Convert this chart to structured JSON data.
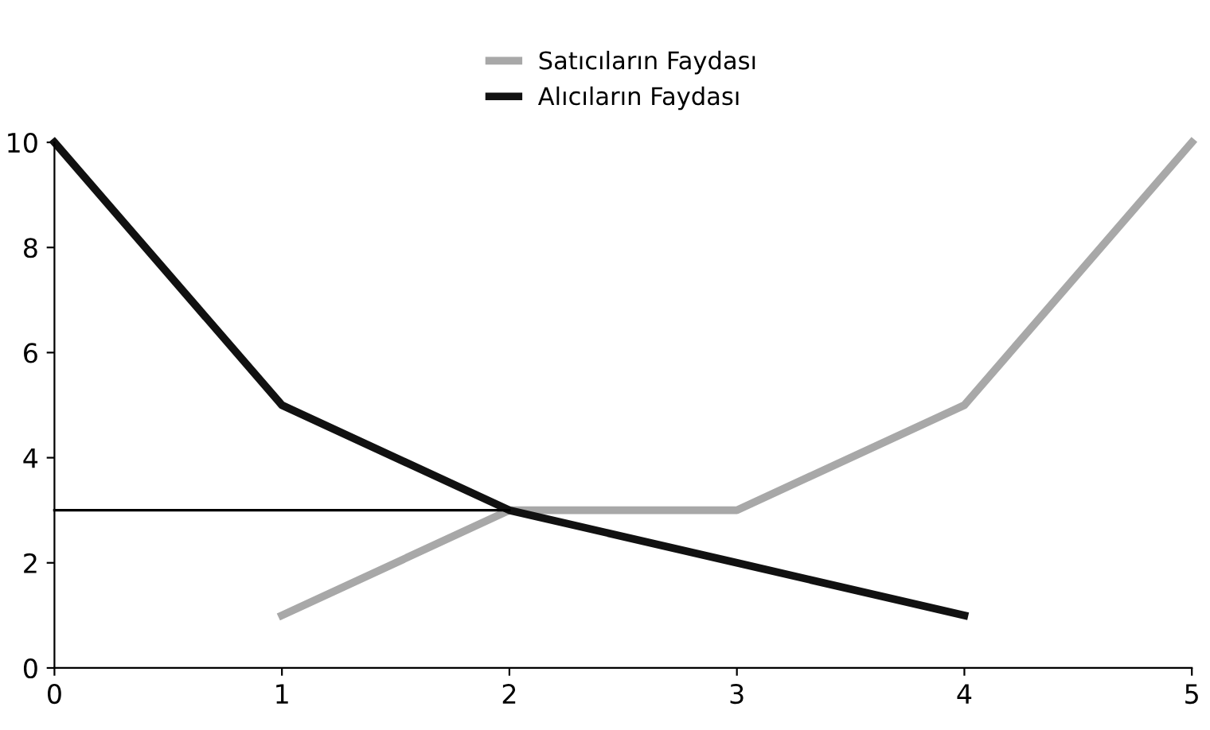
{
  "chart_data": {
    "type": "line",
    "xlim": [
      0,
      5
    ],
    "ylim": [
      0,
      10
    ],
    "xticks": [
      0,
      1,
      2,
      3,
      4,
      5
    ],
    "yticks": [
      0,
      2,
      4,
      6,
      8,
      10
    ],
    "grid": false,
    "legend": "top",
    "marker": "none",
    "line_style": "solid",
    "series": [
      {
        "name": "Satıcıların Faydası",
        "color": "#a8a8a8",
        "x": [
          1,
          2,
          3,
          4,
          5
        ],
        "values": [
          1,
          3,
          3,
          5,
          10
        ]
      },
      {
        "name": "Alıcıların Faydası",
        "color": "#111111",
        "x": [
          0,
          1,
          2,
          3,
          4
        ],
        "values": [
          10,
          5,
          3,
          2,
          1
        ]
      },
      {
        "color": "#000000",
        "x": [
          0,
          2
        ],
        "values": [
          3,
          3
        ]
      }
    ]
  }
}
